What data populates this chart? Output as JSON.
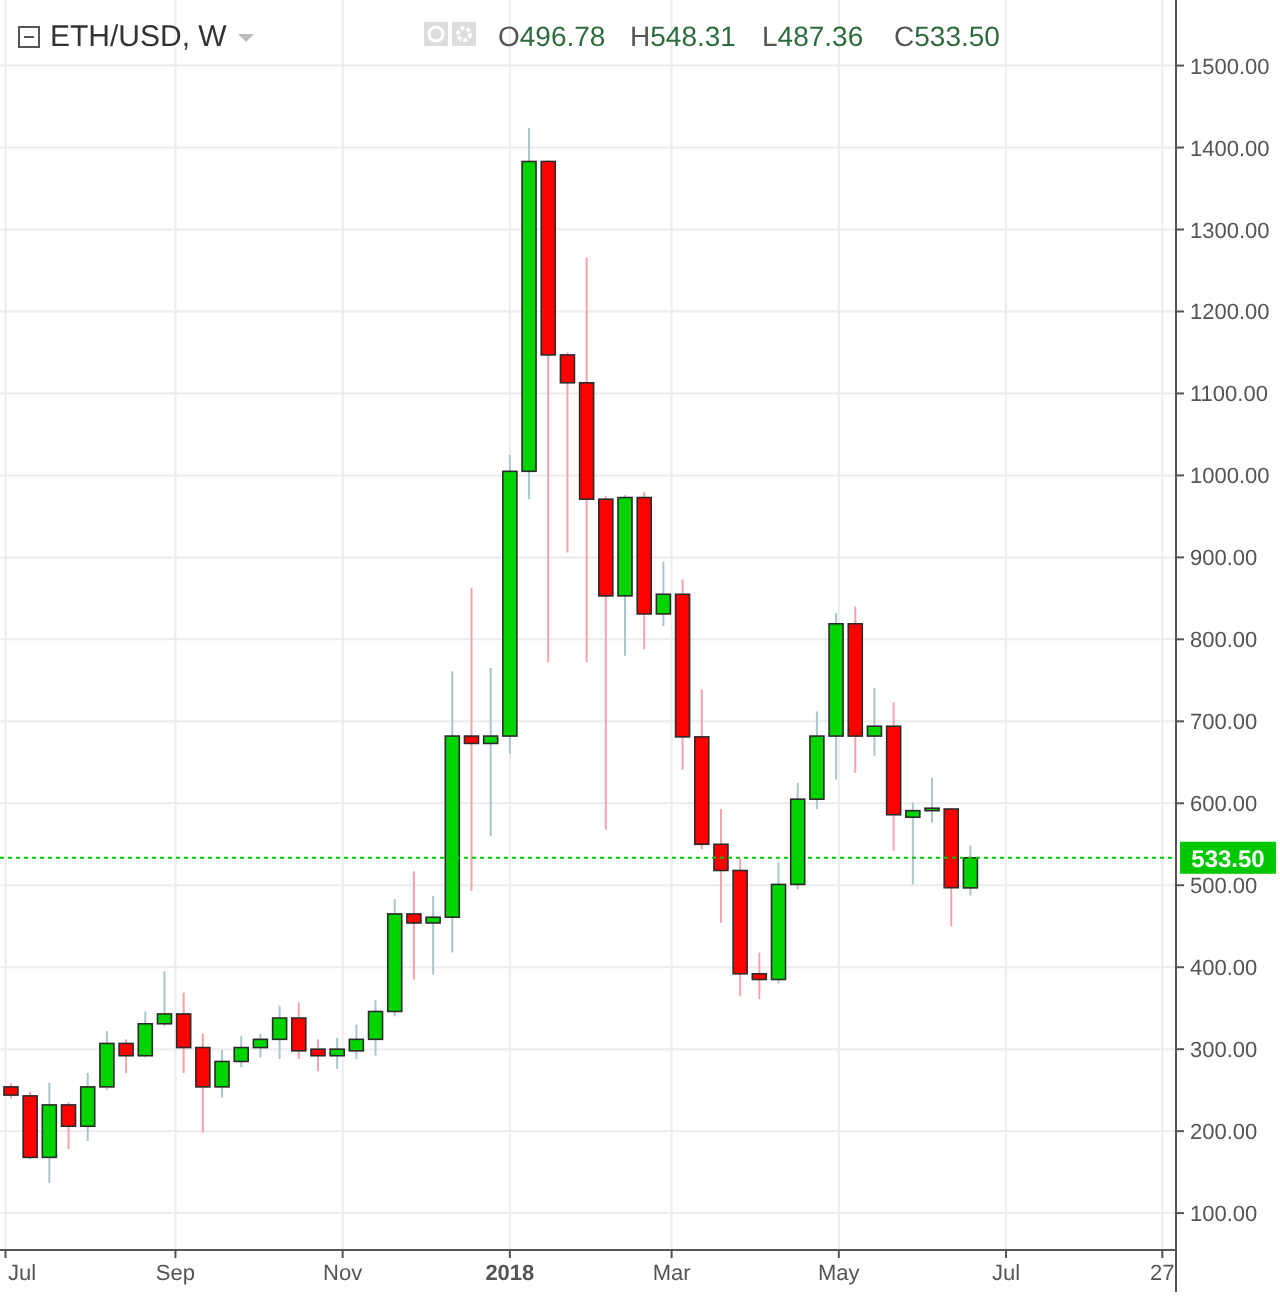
{
  "chart_data": {
    "type": "candlestick",
    "title": "ETH/USD, W",
    "annotations": [
      "O496.78",
      "H548.31",
      "L487.36",
      "C533.50"
    ],
    "x": [
      "2017-07-03",
      "2017-07-10",
      "2017-07-17",
      "2017-07-24",
      "2017-07-31",
      "2017-08-07",
      "2017-08-14",
      "2017-08-21",
      "2017-08-28",
      "2017-09-04",
      "2017-09-11",
      "2017-09-18",
      "2017-09-25",
      "2017-10-02",
      "2017-10-09",
      "2017-10-16",
      "2017-10-23",
      "2017-10-30",
      "2017-11-06",
      "2017-11-13",
      "2017-11-20",
      "2017-11-27",
      "2017-12-04",
      "2017-12-11",
      "2017-12-18",
      "2017-12-25",
      "2018-01-01",
      "2018-01-08",
      "2018-01-15",
      "2018-01-22",
      "2018-01-29",
      "2018-02-05",
      "2018-02-12",
      "2018-02-19",
      "2018-02-26",
      "2018-03-05",
      "2018-03-12",
      "2018-03-19",
      "2018-03-26",
      "2018-04-02",
      "2018-04-09",
      "2018-04-16",
      "2018-04-23",
      "2018-04-30",
      "2018-05-07",
      "2018-05-14",
      "2018-05-21",
      "2018-05-28",
      "2018-06-04",
      "2018-06-11",
      "2018-06-18"
    ],
    "ohlc": [
      [
        254,
        258,
        240,
        244
      ],
      [
        243,
        248,
        166,
        168
      ],
      [
        168,
        259,
        137,
        232
      ],
      [
        232,
        235,
        178,
        206
      ],
      [
        206,
        271,
        188,
        254
      ],
      [
        254,
        322,
        250,
        307
      ],
      [
        307,
        312,
        271,
        292
      ],
      [
        292,
        346,
        290,
        331
      ],
      [
        331,
        395,
        328,
        343
      ],
      [
        343,
        369,
        271,
        302
      ],
      [
        302,
        319,
        198,
        254
      ],
      [
        254,
        299,
        241,
        285
      ],
      [
        285,
        316,
        278,
        302
      ],
      [
        302,
        319,
        290,
        312
      ],
      [
        312,
        353,
        288,
        338
      ],
      [
        338,
        357,
        288,
        298
      ],
      [
        300,
        312,
        273,
        292
      ],
      [
        292,
        314,
        276,
        300
      ],
      [
        298,
        330,
        288,
        312
      ],
      [
        312,
        360,
        292,
        346
      ],
      [
        346,
        483,
        340,
        465
      ],
      [
        465,
        517,
        385,
        454
      ],
      [
        454,
        487,
        391,
        461
      ],
      [
        461,
        761,
        418,
        682
      ],
      [
        682,
        863,
        493,
        673
      ],
      [
        673,
        765,
        560,
        682
      ],
      [
        682,
        1025,
        660,
        1005
      ],
      [
        1005,
        1424,
        971,
        1383
      ],
      [
        1383,
        1385,
        772,
        1147
      ],
      [
        1147,
        1150,
        906,
        1113
      ],
      [
        1113,
        1266,
        772,
        971
      ],
      [
        971,
        975,
        568,
        853
      ],
      [
        853,
        976,
        780,
        973
      ],
      [
        973,
        980,
        788,
        831
      ],
      [
        831,
        895,
        816,
        855
      ],
      [
        855,
        873,
        641,
        681
      ],
      [
        681,
        739,
        544,
        550
      ],
      [
        550,
        593,
        454,
        518
      ],
      [
        518,
        532,
        365,
        392
      ],
      [
        392,
        418,
        361,
        385
      ],
      [
        385,
        528,
        380,
        501
      ],
      [
        501,
        625,
        495,
        605
      ],
      [
        605,
        712,
        593,
        682
      ],
      [
        682,
        832,
        629,
        819
      ],
      [
        819,
        840,
        637,
        682
      ],
      [
        682,
        741,
        658,
        694
      ],
      [
        694,
        723,
        542,
        586
      ],
      [
        583,
        601,
        501,
        591
      ],
      [
        591,
        631,
        576,
        594
      ],
      [
        593,
        594,
        450,
        497
      ],
      [
        496.78,
        548.31,
        487.36,
        533.5
      ]
    ],
    "xlim": [
      "2017-06-29",
      "2018-09-01"
    ],
    "xticks": [
      {
        "value": "2017-07-01",
        "label": "Jul"
      },
      {
        "value": "2017-09-01",
        "label": "Sep"
      },
      {
        "value": "2017-11-01",
        "label": "Nov"
      },
      {
        "value": "2018-01-01",
        "label": "2018"
      },
      {
        "value": "2018-03-01",
        "label": "Mar"
      },
      {
        "value": "2018-05-01",
        "label": "May"
      },
      {
        "value": "2018-07-01",
        "label": "Jul"
      },
      {
        "value": "2018-08-27",
        "label": "27"
      }
    ],
    "ylim": [
      55,
      1580
    ],
    "yticks": [
      {
        "value": 100,
        "label": "100.00"
      },
      {
        "value": 200,
        "label": "200.00"
      },
      {
        "value": 300,
        "label": "300.00"
      },
      {
        "value": 400,
        "label": "400.00"
      },
      {
        "value": 500,
        "label": "500.00"
      },
      {
        "value": 600,
        "label": "600.00"
      },
      {
        "value": 700,
        "label": "700.00"
      },
      {
        "value": 800,
        "label": "800.00"
      },
      {
        "value": 900,
        "label": "900.00"
      },
      {
        "value": 1000,
        "label": "1000.00"
      },
      {
        "value": 1100,
        "label": "1100.00"
      },
      {
        "value": 1200,
        "label": "1200.00"
      },
      {
        "value": 1300,
        "label": "1300.00"
      },
      {
        "value": 1400,
        "label": "1400.00"
      },
      {
        "value": 1500,
        "label": "1500.00"
      }
    ],
    "grid": true,
    "ref_lines": [
      {
        "axis": "y",
        "value": 533.5,
        "label": "533.50",
        "color": "#00c800",
        "line_style": "dotted"
      }
    ]
  }
}
